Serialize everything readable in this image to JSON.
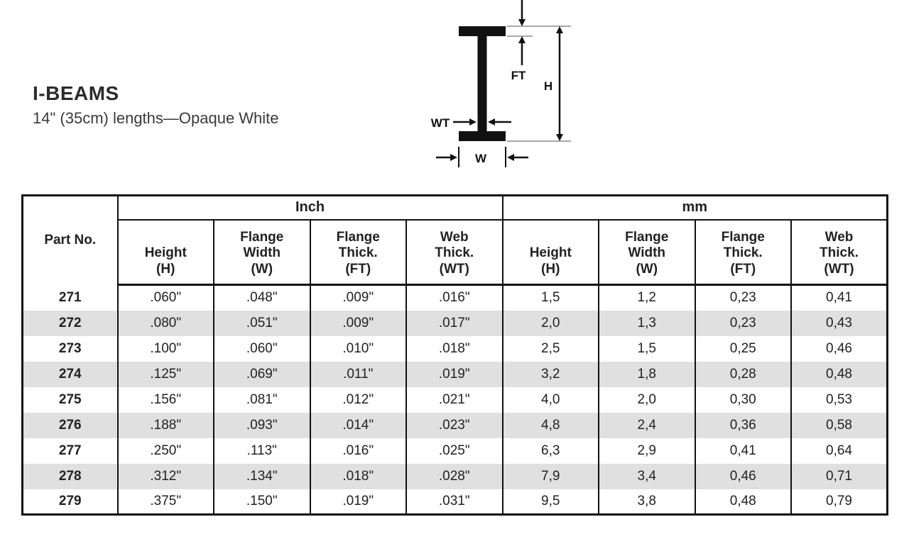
{
  "header": {
    "title": "I-BEAMS",
    "subtitle": "14\" (35cm) lengths—Opaque White"
  },
  "diagram": {
    "labels": {
      "wt": "WT",
      "ft": "FT",
      "h": "H",
      "w": "W"
    }
  },
  "table": {
    "part_col_header": "Part No.",
    "groups": [
      {
        "label": "Inch"
      },
      {
        "label": "mm"
      }
    ],
    "sub_headers": [
      "Height\n(H)",
      "Flange\nWidth\n(W)",
      "Flange\nThick.\n(FT)",
      "Web\nThick.\n(WT)"
    ],
    "rows": [
      {
        "part": "271",
        "values": [
          ".060\"",
          ".048\"",
          ".009\"",
          ".016\"",
          "1,5",
          "1,2",
          "0,23",
          "0,41"
        ]
      },
      {
        "part": "272",
        "values": [
          ".080\"",
          ".051\"",
          ".009\"",
          ".017\"",
          "2,0",
          "1,3",
          "0,23",
          "0,43"
        ]
      },
      {
        "part": "273",
        "values": [
          ".100\"",
          ".060\"",
          ".010\"",
          ".018\"",
          "2,5",
          "1,5",
          "0,25",
          "0,46"
        ]
      },
      {
        "part": "274",
        "values": [
          ".125\"",
          ".069\"",
          ".011\"",
          ".019\"",
          "3,2",
          "1,8",
          "0,28",
          "0,48"
        ]
      },
      {
        "part": "275",
        "values": [
          ".156\"",
          ".081\"",
          ".012\"",
          ".021\"",
          "4,0",
          "2,0",
          "0,30",
          "0,53"
        ]
      },
      {
        "part": "276",
        "values": [
          ".188\"",
          ".093\"",
          ".014\"",
          ".023\"",
          "4,8",
          "2,4",
          "0,36",
          "0,58"
        ]
      },
      {
        "part": "277",
        "values": [
          ".250\"",
          ".113\"",
          ".016\"",
          ".025\"",
          "6,3",
          "2,9",
          "0,41",
          "0,64"
        ]
      },
      {
        "part": "278",
        "values": [
          ".312\"",
          ".134\"",
          ".018\"",
          ".028\"",
          "7,9",
          "3,4",
          "0,46",
          "0,71"
        ]
      },
      {
        "part": "279",
        "values": [
          ".375\"",
          ".150\"",
          ".019\"",
          ".031\"",
          "9,5",
          "3,8",
          "0,48",
          "0,79"
        ]
      }
    ]
  }
}
